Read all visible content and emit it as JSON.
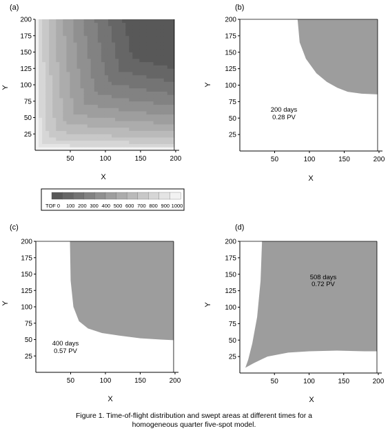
{
  "chart_data": [
    {
      "type": "heatmap",
      "panel_label": "(a)",
      "title": "",
      "xlabel": "X",
      "ylabel": "Y",
      "xlim": [
        0,
        205
      ],
      "ylim": [
        0,
        200
      ],
      "xticks": [
        50,
        100,
        150,
        200
      ],
      "yticks": [
        25,
        50,
        75,
        100,
        125,
        150,
        175,
        200
      ],
      "field": "time-of-flight, darker = larger TOF, shaded in bands of 100",
      "annotation": []
    },
    {
      "type": "area",
      "panel_label": "(b)",
      "title": "",
      "xlabel": "X",
      "ylabel": "Y",
      "xlim": [
        0,
        205
      ],
      "ylim": [
        0,
        200
      ],
      "xticks": [
        50,
        100,
        150,
        200
      ],
      "yticks": [
        25,
        50,
        75,
        100,
        125,
        150,
        175,
        200
      ],
      "annotation": [
        "200 days",
        "0.28 PV"
      ],
      "front": {
        "x": [
          83,
          86,
          95,
          110,
          125,
          140,
          155,
          175,
          198
        ],
        "y": [
          200,
          165,
          140,
          118,
          105,
          96,
          90,
          87,
          86
        ]
      }
    },
    {
      "type": "area",
      "panel_label": "(c)",
      "title": "",
      "xlabel": "X",
      "ylabel": "Y",
      "xlim": [
        0,
        205
      ],
      "ylim": [
        0,
        200
      ],
      "xticks": [
        50,
        100,
        150,
        200
      ],
      "yticks": [
        25,
        50,
        75,
        100,
        125,
        150,
        175,
        200
      ],
      "annotation": [
        "400 days",
        "0.57 PV"
      ],
      "front": {
        "x": [
          49,
          50,
          54,
          62,
          75,
          95,
          120,
          150,
          180,
          198
        ],
        "y": [
          200,
          140,
          100,
          78,
          67,
          60,
          56,
          52,
          50,
          49
        ]
      }
    },
    {
      "type": "area",
      "panel_label": "(d)",
      "title": "",
      "xlabel": "X",
      "ylabel": "Y",
      "xlim": [
        0,
        205
      ],
      "ylim": [
        0,
        200
      ],
      "xticks": [
        50,
        100,
        150,
        200
      ],
      "yticks": [
        25,
        50,
        75,
        100,
        125,
        150,
        175,
        200
      ],
      "annotation": [
        "508 days",
        "0.72 PV"
      ],
      "front": {
        "x": [
          32,
          30,
          25,
          18,
          12,
          8,
          20,
          40,
          70,
          100,
          140,
          180,
          198
        ],
        "y": [
          200,
          140,
          85,
          45,
          20,
          8,
          15,
          25,
          31,
          33,
          34,
          33,
          33
        ]
      }
    }
  ],
  "colorbar": {
    "label": "TOF",
    "ticks": [
      "0",
      "100",
      "200",
      "300",
      "400",
      "500",
      "600",
      "700",
      "800",
      "900",
      "1000"
    ],
    "colors": [
      "#585858",
      "#666666",
      "#747474",
      "#828282",
      "#909090",
      "#9e9e9e",
      "#acacac",
      "#bababa",
      "#c8c8c8",
      "#d6d6d6",
      "#e4e4e4",
      "#f2f2f2"
    ]
  },
  "colors": {
    "swept": "#9d9d9d",
    "axis": "#000000"
  },
  "caption": {
    "line1": "Figure 1.  Time-of-flight distribution and swept areas at different times for a",
    "line2": "homogeneous quarter five-spot model."
  }
}
